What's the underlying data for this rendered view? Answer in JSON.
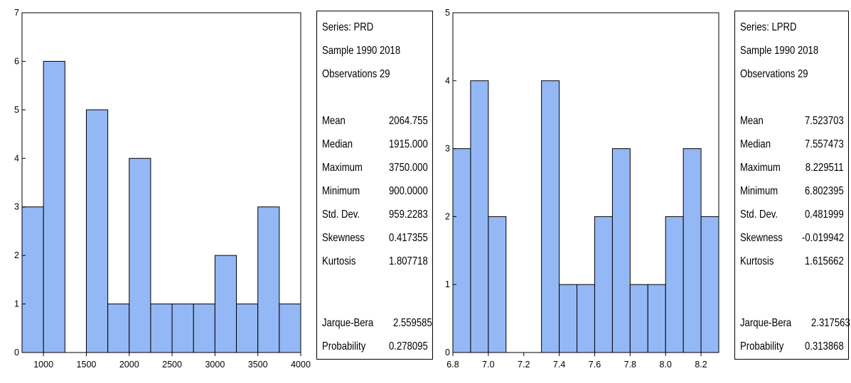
{
  "chart_data": [
    {
      "type": "bar",
      "subtype": "histogram",
      "bins": [
        {
          "x0": 750,
          "x1": 1000,
          "count": 3
        },
        {
          "x0": 1000,
          "x1": 1250,
          "count": 6
        },
        {
          "x0": 1250,
          "x1": 1500,
          "count": 0
        },
        {
          "x0": 1500,
          "x1": 1750,
          "count": 5
        },
        {
          "x0": 1750,
          "x1": 2000,
          "count": 1
        },
        {
          "x0": 2000,
          "x1": 2250,
          "count": 4
        },
        {
          "x0": 2250,
          "x1": 2500,
          "count": 1
        },
        {
          "x0": 2500,
          "x1": 2750,
          "count": 1
        },
        {
          "x0": 2750,
          "x1": 3000,
          "count": 1
        },
        {
          "x0": 3000,
          "x1": 3250,
          "count": 2
        },
        {
          "x0": 3250,
          "x1": 3500,
          "count": 1
        },
        {
          "x0": 3500,
          "x1": 3750,
          "count": 3
        },
        {
          "x0": 3750,
          "x1": 4000,
          "count": 1
        }
      ],
      "xlim": [
        750,
        4000
      ],
      "ylim": [
        0,
        7
      ],
      "xticks": [
        1000,
        1500,
        2000,
        2500,
        3000,
        3500,
        4000
      ],
      "xtick_labels": [
        "1000",
        "1500",
        "2000",
        "2500",
        "3000",
        "3500",
        "4000"
      ],
      "yticks": [
        0,
        1,
        2,
        3,
        4,
        5,
        6,
        7
      ],
      "ytick_labels": [
        "0",
        "1",
        "2",
        "3",
        "4",
        "5",
        "6",
        "7"
      ],
      "bar_color": "#94b8f5",
      "grid": false,
      "stats": {
        "series": "Series: PRD",
        "sample": "Sample 1990 2018",
        "observations": "Observations 29",
        "rows": [
          {
            "label": "Mean",
            "value": "2064.755"
          },
          {
            "label": "Median",
            "value": "1915.000"
          },
          {
            "label": "Maximum",
            "value": "3750.000"
          },
          {
            "label": "Minimum",
            "value": "900.0000"
          },
          {
            "label": "Std. Dev.",
            "value": "959.2283"
          },
          {
            "label": "Skewness",
            "value": "0.417355"
          },
          {
            "label": "Kurtosis",
            "value": "1.807718"
          }
        ],
        "test_rows": [
          {
            "label": "Jarque-Bera",
            "value": "2.559585"
          },
          {
            "label": "Probability",
            "value": "0.278095"
          }
        ]
      }
    },
    {
      "type": "bar",
      "subtype": "histogram",
      "bins": [
        {
          "x0": 6.8,
          "x1": 6.9,
          "count": 3
        },
        {
          "x0": 6.9,
          "x1": 7.0,
          "count": 4
        },
        {
          "x0": 7.0,
          "x1": 7.1,
          "count": 2
        },
        {
          "x0": 7.1,
          "x1": 7.2,
          "count": 0
        },
        {
          "x0": 7.2,
          "x1": 7.3,
          "count": 0
        },
        {
          "x0": 7.3,
          "x1": 7.4,
          "count": 4
        },
        {
          "x0": 7.4,
          "x1": 7.5,
          "count": 1
        },
        {
          "x0": 7.5,
          "x1": 7.6,
          "count": 1
        },
        {
          "x0": 7.6,
          "x1": 7.7,
          "count": 2
        },
        {
          "x0": 7.7,
          "x1": 7.8,
          "count": 3
        },
        {
          "x0": 7.8,
          "x1": 7.9,
          "count": 1
        },
        {
          "x0": 7.9,
          "x1": 8.0,
          "count": 1
        },
        {
          "x0": 8.0,
          "x1": 8.1,
          "count": 2
        },
        {
          "x0": 8.1,
          "x1": 8.2,
          "count": 3
        },
        {
          "x0": 8.2,
          "x1": 8.3,
          "count": 2
        }
      ],
      "xlim": [
        6.8,
        8.3
      ],
      "ylim": [
        0,
        5
      ],
      "xticks": [
        6.8,
        7.0,
        7.2,
        7.4,
        7.6,
        7.8,
        8.0,
        8.2
      ],
      "xtick_labels": [
        "6.8",
        "7.0",
        "7.2",
        "7.4",
        "7.6",
        "7.8",
        "8.0",
        "8.2"
      ],
      "yticks": [
        0,
        1,
        2,
        3,
        4,
        5
      ],
      "ytick_labels": [
        "0",
        "1",
        "2",
        "3",
        "4",
        "5"
      ],
      "bar_color": "#94b8f5",
      "grid": false,
      "stats": {
        "series": "Series: LPRD",
        "sample": "Sample 1990 2018",
        "observations": "Observations 29",
        "rows": [
          {
            "label": "Mean",
            "value": "7.523703"
          },
          {
            "label": "Median",
            "value": "7.557473"
          },
          {
            "label": "Maximum",
            "value": "8.229511"
          },
          {
            "label": "Minimum",
            "value": "6.802395"
          },
          {
            "label": "Std. Dev.",
            "value": "0.481999"
          },
          {
            "label": "Skewness",
            "value": "-0.019942"
          },
          {
            "label": "Kurtosis",
            "value": "1.615662"
          }
        ],
        "test_rows": [
          {
            "label": "Jarque-Bera",
            "value": "2.317563"
          },
          {
            "label": "Probability",
            "value": "0.313868"
          }
        ]
      }
    }
  ]
}
